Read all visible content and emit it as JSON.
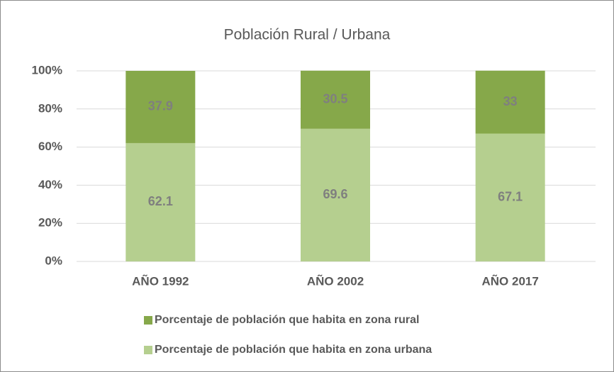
{
  "chart_data": {
    "type": "stacked_bar",
    "title": "Población Rural / Urbana",
    "categories": [
      "AÑO 1992",
      "AÑO 2002",
      "AÑO 2017"
    ],
    "series": [
      {
        "name": "Porcentaje de población que habita en zona rural",
        "color": "#86a84a",
        "values": [
          37.9,
          30.5,
          33
        ]
      },
      {
        "name": "Porcentaje de población que habita en zona urbana",
        "color": "#b5cf8f",
        "values": [
          62.1,
          69.6,
          67.1
        ]
      }
    ],
    "ylim": [
      0,
      100
    ],
    "yticks": [
      {
        "value": 0,
        "label": "0%"
      },
      {
        "value": 20,
        "label": "20%"
      },
      {
        "value": 40,
        "label": "40%"
      },
      {
        "value": 60,
        "label": "60%"
      },
      {
        "value": 80,
        "label": "80%"
      },
      {
        "value": 100,
        "label": "100%"
      }
    ],
    "grid": true
  }
}
